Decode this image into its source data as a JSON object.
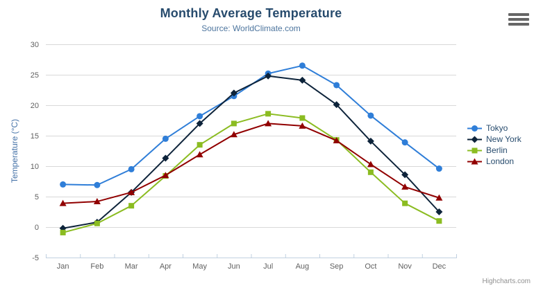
{
  "chart_data": {
    "type": "line",
    "title": "Monthly Average Temperature",
    "subtitle": "Source: WorldClimate.com",
    "categories": [
      "Jan",
      "Feb",
      "Mar",
      "Apr",
      "May",
      "Jun",
      "Jul",
      "Aug",
      "Sep",
      "Oct",
      "Nov",
      "Dec"
    ],
    "xlabel": "",
    "ylabel": "Temperature (°C)",
    "ylim": [
      -5,
      30
    ],
    "ytick_interval": 5,
    "grid": true,
    "legend_position": "right",
    "series": [
      {
        "name": "Tokyo",
        "color": "#2f7ed8",
        "marker": "circle",
        "values": [
          7.0,
          6.9,
          9.5,
          14.5,
          18.2,
          21.5,
          25.2,
          26.5,
          23.3,
          18.3,
          13.9,
          9.6
        ]
      },
      {
        "name": "New York",
        "color": "#0d233a",
        "marker": "diamond",
        "values": [
          -0.2,
          0.8,
          5.7,
          11.3,
          17.0,
          22.0,
          24.8,
          24.1,
          20.1,
          14.1,
          8.6,
          2.5
        ]
      },
      {
        "name": "Berlin",
        "color": "#8bbc21",
        "marker": "square",
        "values": [
          -0.9,
          0.6,
          3.5,
          8.4,
          13.5,
          17.0,
          18.6,
          17.9,
          14.3,
          9.0,
          3.9,
          1.0
        ]
      },
      {
        "name": "London",
        "color": "#910000",
        "marker": "triangle-up",
        "values": [
          3.9,
          4.2,
          5.7,
          8.5,
          11.9,
          15.2,
          17.0,
          16.6,
          14.2,
          10.3,
          6.6,
          4.8
        ]
      }
    ]
  },
  "credits": {
    "text": "Highcharts.com"
  },
  "export_menu": {
    "icon": "hamburger-icon"
  },
  "colors": {
    "title": "#274b6d",
    "subtitle": "#4d759e",
    "axis_title": "#4572a7",
    "tick_label": "#606060",
    "grid_line": "#d8d8d8",
    "axis_line": "#c0d0e0",
    "legend_text": "#274b6d",
    "credits_text": "#909090",
    "menu_icon": "#666666",
    "background": "#ffffff"
  }
}
